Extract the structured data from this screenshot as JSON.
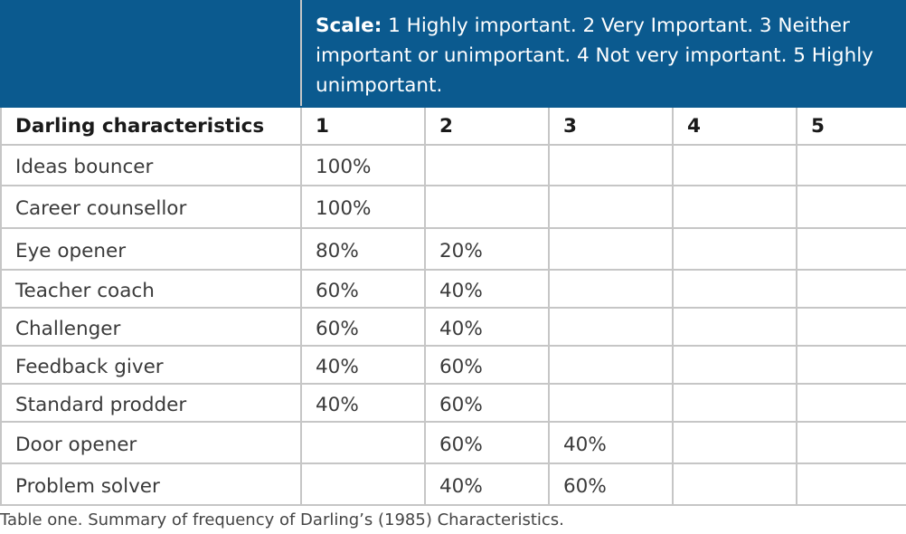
{
  "scale": {
    "label": "Scale:",
    "text": "1 Highly important.  2 Very Important. 3 Neither important or unimportant. 4 Not very important. 5 Highly unimportant."
  },
  "header": [
    "Darling characteristics",
    "1",
    "2",
    "3",
    "4",
    "5"
  ],
  "rows": [
    [
      "Ideas bouncer",
      "100%",
      "",
      "",
      "",
      ""
    ],
    [
      "Career counsellor",
      "100%",
      "",
      "",
      "",
      ""
    ],
    [
      "Eye opener",
      "80%",
      "20%",
      "",
      "",
      ""
    ],
    [
      "Teacher coach",
      "60%",
      "40%",
      "",
      "",
      ""
    ],
    [
      "Challenger",
      "60%",
      "40%",
      "",
      "",
      ""
    ],
    [
      "Feedback giver",
      "40%",
      "60%",
      "",
      "",
      ""
    ],
    [
      "Standard prodder",
      "40%",
      "60%",
      "",
      "",
      ""
    ],
    [
      "Door opener",
      "",
      "60%",
      "40%",
      "",
      ""
    ],
    [
      "Problem solver",
      "",
      "40%",
      "60%",
      "",
      ""
    ]
  ],
  "caption": "Table one. Summary of frequency of Darling’s (1985) Characteristics.",
  "colors": {
    "header_band": "#0b5a8f",
    "grid": "#c6c6c6"
  }
}
